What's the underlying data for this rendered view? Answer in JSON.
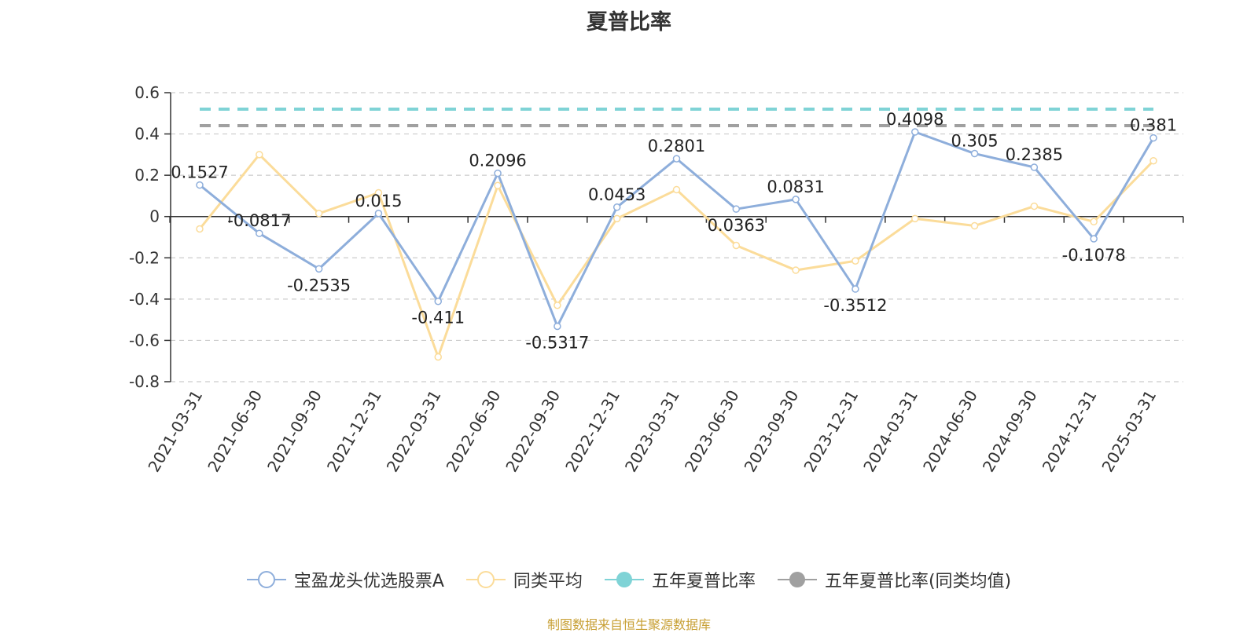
{
  "chart_data": {
    "type": "line",
    "title": "夏普比率",
    "categories": [
      "2021-03-31",
      "2021-06-30",
      "2021-09-30",
      "2021-12-31",
      "2022-03-31",
      "2022-06-30",
      "2022-09-30",
      "2022-12-31",
      "2023-03-31",
      "2023-06-30",
      "2023-09-30",
      "2023-12-31",
      "2024-03-31",
      "2024-06-30",
      "2024-09-30",
      "2024-12-31",
      "2025-03-31"
    ],
    "ylim": [
      -0.8,
      0.6
    ],
    "yticks": [
      "0.6",
      "0.4",
      "0.2",
      "0",
      "-0.2",
      "-0.4",
      "-0.6",
      "-0.8"
    ],
    "ytick_values": [
      0.6,
      0.4,
      0.2,
      0,
      -0.2,
      -0.4,
      -0.6,
      -0.8
    ],
    "grid": true,
    "legend_position": "bottom",
    "series": [
      {
        "name": "宝盈龙头优选股票A",
        "color": "#8eaedb",
        "values": [
          0.1527,
          -0.0817,
          -0.2535,
          0.015,
          -0.411,
          0.2096,
          -0.5317,
          0.0453,
          0.2801,
          0.0363,
          0.0831,
          -0.3512,
          0.4098,
          0.305,
          0.2385,
          -0.1078,
          0.381
        ],
        "labels": [
          "0.1527",
          "-0.0817",
          "-0.2535",
          "0.015",
          "-0.411",
          "0.2096",
          "-0.5317",
          "0.0453",
          "0.2801",
          "0.0363",
          "0.0831",
          "-0.3512",
          "0.4098",
          "0.305",
          "0.2385",
          "-0.1078",
          "0.381"
        ]
      },
      {
        "name": "同类平均",
        "color": "#fbdc9a",
        "values": [
          -0.06,
          0.3,
          0.015,
          0.115,
          -0.68,
          0.15,
          -0.43,
          -0.01,
          0.13,
          -0.14,
          -0.26,
          -0.215,
          -0.01,
          -0.045,
          0.05,
          -0.025,
          0.27
        ]
      },
      {
        "name": "五年夏普比率",
        "color": "#7fd3d6",
        "constant": 0.52
      },
      {
        "name": "五年夏普比率(同类均值)",
        "color": "#a0a0a0",
        "constant": 0.44
      }
    ]
  },
  "legend": [
    {
      "label": "宝盈龙头优选股票A",
      "color": "#8eaedb",
      "style": "hollow"
    },
    {
      "label": "同类平均",
      "color": "#fbdc9a",
      "style": "hollow"
    },
    {
      "label": "五年夏普比率",
      "color": "#7fd3d6",
      "style": "filled"
    },
    {
      "label": "五年夏普比率(同类均值)",
      "color": "#a0a0a0",
      "style": "filled"
    }
  ],
  "source_note": "制图数据来自恒生聚源数据库"
}
